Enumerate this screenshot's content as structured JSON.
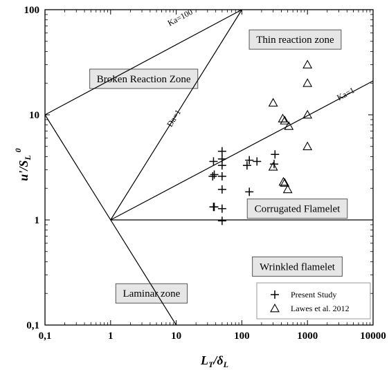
{
  "chart_data": {
    "type": "scatter",
    "x_scale": "log",
    "y_scale": "log",
    "xlim": [
      0.1,
      10000
    ],
    "ylim": [
      0.1,
      100
    ],
    "x_ticks": [
      {
        "value": 0.1,
        "label": "0,1"
      },
      {
        "value": 1,
        "label": "1"
      },
      {
        "value": 10,
        "label": "10"
      },
      {
        "value": 100,
        "label": "100"
      },
      {
        "value": 1000,
        "label": "1000"
      },
      {
        "value": 10000,
        "label": "10000"
      }
    ],
    "y_ticks": [
      {
        "value": 0.1,
        "label": "0,1"
      },
      {
        "value": 1,
        "label": "1"
      },
      {
        "value": 10,
        "label": "10"
      },
      {
        "value": 100,
        "label": "100"
      }
    ],
    "xlabel_main": "L",
    "xlabel_sub": "T",
    "xlabel_rest": "/δ",
    "xlabel_sub2": "L",
    "ylabel_main": "u'/S",
    "ylabel_sub": "L",
    "ylabel_sup": "0",
    "boundary_lines": [
      {
        "name": "Ka=100",
        "points": [
          [
            0.1,
            10
          ],
          [
            100,
            100
          ]
        ],
        "label": "Ka=100",
        "label_at": [
          12,
          80
        ]
      },
      {
        "name": "Da=1",
        "points": [
          [
            1,
            1
          ],
          [
            100,
            100
          ]
        ],
        "label": "Da=1",
        "label_at": [
          10,
          9
        ]
      },
      {
        "name": "Ka=1",
        "points": [
          [
            1,
            1
          ],
          [
            10000,
            21
          ]
        ],
        "label": "Ka=1",
        "label_at": [
          4000,
          15
        ]
      },
      {
        "name": "laminar-boundary",
        "points": [
          [
            0.1,
            10
          ],
          [
            10,
            0.1
          ]
        ],
        "label": "",
        "label_at": null
      },
      {
        "name": "flamelet-boundary",
        "points": [
          [
            1,
            1
          ],
          [
            10000,
            1
          ]
        ],
        "label": "",
        "label_at": null
      }
    ],
    "zones": [
      {
        "label": "Thin reaction zone",
        "at": [
          650,
          52
        ]
      },
      {
        "label": "Broken Reaction Zone",
        "at": [
          3.2,
          22
        ]
      },
      {
        "label": "Corrugated Flamelet",
        "at": [
          700,
          1.28
        ]
      },
      {
        "label": "Wrinkled flamelet",
        "at": [
          700,
          0.36
        ]
      },
      {
        "label": "Laminar zone",
        "at": [
          4.2,
          0.2
        ]
      }
    ],
    "series": [
      {
        "name": "Present Study",
        "marker": "plus",
        "points": [
          [
            50,
            4.5
          ],
          [
            50,
            3.8
          ],
          [
            50,
            3.3
          ],
          [
            50,
            2.6
          ],
          [
            50,
            1.95
          ],
          [
            50,
            1.28
          ],
          [
            50,
            0.98
          ],
          [
            37,
            3.6
          ],
          [
            38,
            2.7
          ],
          [
            36,
            2.6
          ],
          [
            37,
            1.33
          ],
          [
            38,
            1.33
          ],
          [
            120,
            3.3
          ],
          [
            130,
            3.7
          ],
          [
            170,
            3.6
          ],
          [
            320,
            4.2
          ],
          [
            310,
            3.4
          ],
          [
            130,
            1.85
          ]
        ]
      },
      {
        "name": "Lawes et al. 2012",
        "marker": "triangle",
        "points": [
          [
            1000,
            30
          ],
          [
            1000,
            20
          ],
          [
            300,
            13
          ],
          [
            420,
            9.2
          ],
          [
            450,
            8.8
          ],
          [
            520,
            7.8
          ],
          [
            1000,
            10
          ],
          [
            1000,
            5.0
          ],
          [
            300,
            3.2
          ],
          [
            430,
            2.3
          ],
          [
            450,
            2.25
          ],
          [
            500,
            1.95
          ]
        ]
      }
    ],
    "legend": {
      "position": "bottom-right"
    }
  }
}
